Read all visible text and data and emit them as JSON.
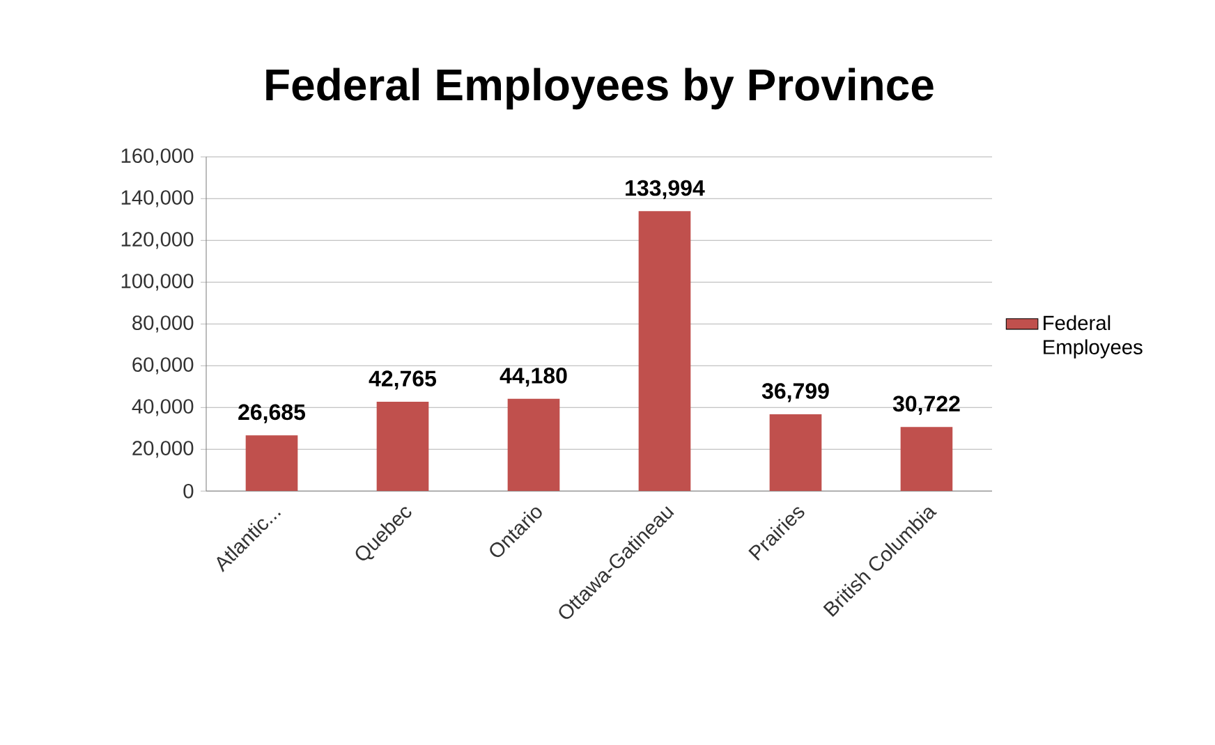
{
  "chart_data": {
    "type": "bar",
    "title": "Federal Employees by Province",
    "categories": [
      "Atlantic...",
      "Quebec",
      "Ontario",
      "Ottawa-Gatineau",
      "Prairies",
      "British Columbia"
    ],
    "series": [
      {
        "name": "Federal Employees",
        "color": "#c0504d",
        "values": [
          26685,
          42765,
          44180,
          133994,
          36799,
          30722
        ],
        "value_labels": [
          "26,685",
          "42,765",
          "44,180",
          "133,994",
          "36,799",
          "30,722"
        ]
      }
    ],
    "ylim": [
      0,
      160000
    ],
    "yticks": [
      0,
      {
        "value": 20000,
        "label": "20,000"
      },
      {
        "value": 40000,
        "label": "40,000"
      },
      {
        "value": 60000,
        "label": "60,000"
      },
      {
        "value": 80000,
        "label": "80,000"
      },
      {
        "value": 100000,
        "label": "100,000"
      },
      {
        "value": 120000,
        "label": "120,000"
      },
      {
        "value": 140000,
        "label": "140,000"
      },
      {
        "value": 160000,
        "label": "160,000"
      }
    ],
    "grid": "y",
    "legend": "right"
  }
}
